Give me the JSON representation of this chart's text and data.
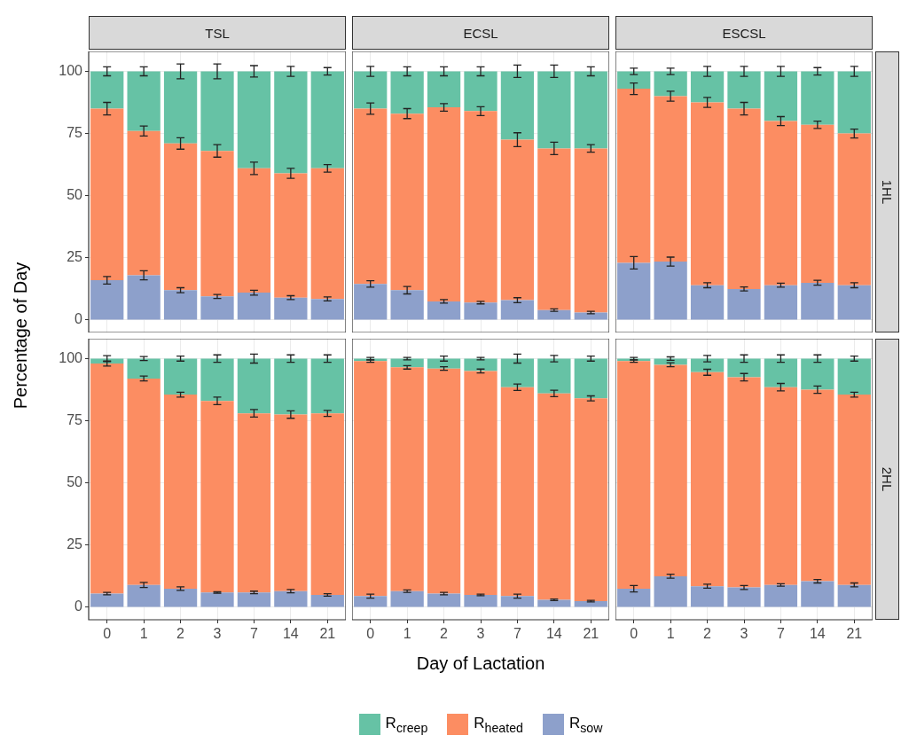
{
  "chart_data": [
    {
      "type": "bar",
      "title": "TSL",
      "ylabel": "Percentage of Day",
      "legend": "bottom",
      "stacked": true,
      "categories": [
        "0",
        "1",
        "2",
        "3",
        "7",
        "14",
        "21"
      ],
      "ylim": [
        -5,
        108
      ],
      "yticks": [
        0,
        25,
        50,
        75,
        100
      ],
      "grid": true,
      "tick_labels": "y",
      "series": [
        {
          "name": "R$_{sow}$",
          "color": "#8da0cb",
          "values": [
            16,
            18,
            12,
            9.5,
            11,
            9,
            8.5
          ],
          "errors": [
            1.5,
            1.8,
            1,
            0.8,
            1,
            0.8,
            0.8
          ]
        },
        {
          "name": "R$_{heated}$",
          "color": "#fc8d62",
          "values": [
            69,
            58,
            59,
            58.5,
            50,
            50,
            52.5
          ],
          "errors": [
            2.5,
            2,
            2.3,
            2.5,
            2.5,
            2,
            1.5
          ]
        },
        {
          "name": "R$_{creep}$",
          "color": "#66c2a5",
          "values": [
            15,
            24,
            29,
            32,
            39,
            41,
            39
          ],
          "errors": [
            1.8,
            1.8,
            3,
            3,
            2.3,
            2,
            1.5
          ]
        }
      ]
    },
    {
      "type": "bar",
      "title": "ECSL",
      "stacked": true,
      "categories": [
        "0",
        "1",
        "2",
        "3",
        "7",
        "14",
        "21"
      ],
      "ylim": [
        -5,
        108
      ],
      "yticks": [
        0,
        25,
        50,
        75,
        100
      ],
      "grid": true,
      "tick_labels": false,
      "series": [
        {
          "color": "#8da0cb",
          "values": [
            14.5,
            12,
            7.5,
            7,
            8,
            4,
            3
          ],
          "errors": [
            1.3,
            1.5,
            0.7,
            0.5,
            1,
            0.5,
            0.5
          ]
        },
        {
          "color": "#fc8d62",
          "values": [
            70.5,
            71,
            78,
            77,
            64.5,
            65,
            66
          ],
          "errors": [
            2.3,
            2,
            1.5,
            1.8,
            2.8,
            2.5,
            1.5
          ]
        },
        {
          "color": "#66c2a5",
          "values": [
            15,
            17,
            14.5,
            16,
            27.5,
            31,
            31
          ],
          "errors": [
            2,
            1.8,
            1.8,
            1.8,
            2.5,
            2.5,
            1.8
          ]
        }
      ]
    },
    {
      "type": "bar",
      "title": "ESCSL",
      "y2label": "1HL",
      "stacked": true,
      "categories": [
        "0",
        "1",
        "2",
        "3",
        "7",
        "14",
        "21"
      ],
      "ylim": [
        -5,
        108
      ],
      "yticks": [
        0,
        25,
        50,
        75,
        100
      ],
      "grid": true,
      "tick_labels": false,
      "series": [
        {
          "color": "#8da0cb",
          "values": [
            23,
            23.5,
            14,
            12.5,
            14,
            15,
            14
          ],
          "errors": [
            2.5,
            1.8,
            1,
            0.8,
            0.8,
            1,
            1
          ]
        },
        {
          "color": "#fc8d62",
          "values": [
            70,
            66.5,
            73.5,
            72.5,
            66,
            63.5,
            61
          ],
          "errors": [
            2.3,
            2,
            2,
            2.5,
            1.8,
            1.5,
            1.8
          ]
        },
        {
          "color": "#66c2a5",
          "values": [
            7,
            10,
            12.5,
            15,
            20,
            21.5,
            25
          ],
          "errors": [
            1.3,
            1.3,
            2,
            2,
            2,
            1.5,
            2
          ]
        }
      ]
    },
    {
      "type": "bar",
      "stacked": true,
      "categories": [
        "0",
        "1",
        "2",
        "3",
        "7",
        "14",
        "21"
      ],
      "ylim": [
        -5,
        108
      ],
      "yticks": [
        0,
        25,
        50,
        75,
        100
      ],
      "grid": true,
      "series": [
        {
          "color": "#8da0cb",
          "values": [
            5.5,
            9,
            7.5,
            6,
            6,
            6.5,
            5
          ],
          "errors": [
            0.5,
            1,
            0.7,
            0.3,
            0.5,
            0.7,
            0.5
          ]
        },
        {
          "color": "#fc8d62",
          "values": [
            92.5,
            83,
            78,
            77,
            72,
            71,
            73
          ],
          "errors": [
            1,
            1,
            1,
            1.5,
            1.5,
            1.5,
            1.2
          ]
        },
        {
          "color": "#66c2a5",
          "values": [
            2,
            8,
            14.5,
            17,
            22,
            22.5,
            22
          ],
          "errors": [
            1.2,
            0.8,
            1,
            1.5,
            1.8,
            1.5,
            1.5
          ]
        }
      ]
    },
    {
      "type": "bar",
      "xlabel": "Day of Lactation",
      "stacked": true,
      "categories": [
        "0",
        "1",
        "2",
        "3",
        "7",
        "14",
        "21"
      ],
      "ylim": [
        -5,
        108
      ],
      "yticks": [
        0,
        25,
        50,
        75,
        100
      ],
      "grid": true,
      "tick_labels": "x",
      "series": [
        {
          "color": "#8da0cb",
          "values": [
            4.5,
            6.5,
            5.5,
            5,
            4.5,
            3,
            2.5
          ],
          "errors": [
            0.8,
            0.5,
            0.5,
            0.3,
            0.8,
            0.3,
            0.3
          ]
        },
        {
          "color": "#fc8d62",
          "values": [
            94.5,
            90,
            90.5,
            90,
            84,
            83,
            81.5
          ],
          "errors": [
            0.5,
            0.7,
            0.7,
            0.8,
            1.3,
            1.3,
            1
          ]
        },
        {
          "color": "#66c2a5",
          "values": [
            1,
            3.5,
            4,
            5,
            11.5,
            14,
            16
          ],
          "errors": [
            0.5,
            0.5,
            1,
            0.5,
            1.8,
            1.3,
            1
          ]
        }
      ]
    },
    {
      "type": "bar",
      "y2label": "2HL",
      "stacked": true,
      "categories": [
        "0",
        "1",
        "2",
        "3",
        "7",
        "14",
        "21"
      ],
      "ylim": [
        -5,
        108
      ],
      "yticks": [
        0,
        25,
        50,
        75,
        100
      ],
      "grid": true,
      "tick_labels": "x",
      "series": [
        {
          "color": "#8da0cb",
          "values": [
            7.5,
            12.5,
            8.5,
            8,
            9,
            10.5,
            9
          ],
          "errors": [
            1.3,
            0.8,
            0.8,
            0.8,
            0.5,
            0.7,
            0.8
          ]
        },
        {
          "color": "#fc8d62",
          "values": [
            91.5,
            85,
            86,
            84.5,
            79.5,
            77,
            76.5
          ],
          "errors": [
            0.5,
            0.8,
            1.2,
            1.5,
            1.5,
            1.5,
            1
          ]
        },
        {
          "color": "#66c2a5",
          "values": [
            1,
            2.5,
            5.5,
            7.5,
            11.5,
            12.5,
            14.5
          ],
          "errors": [
            0.5,
            0.7,
            1.3,
            1.5,
            1.5,
            1.5,
            1
          ]
        }
      ]
    }
  ]
}
